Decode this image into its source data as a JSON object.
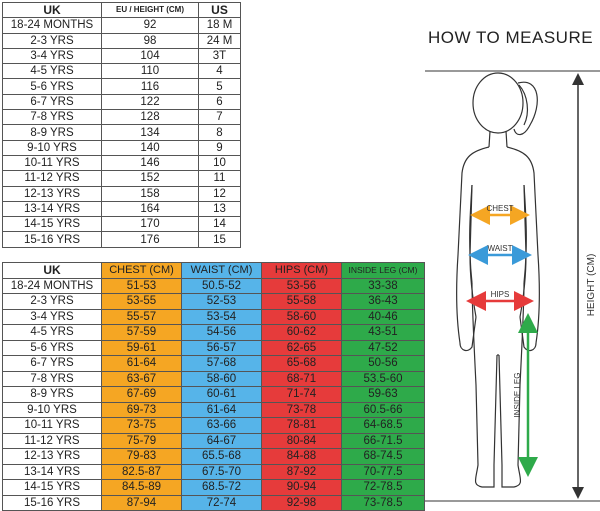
{
  "size_table": {
    "headers": [
      "UK",
      "EU / HEIGHT (CM)",
      "US"
    ],
    "rows": [
      [
        "18-24 MONTHS",
        "92",
        "18 M"
      ],
      [
        "2-3 YRS",
        "98",
        "24 M"
      ],
      [
        "3-4 YRS",
        "104",
        "3T"
      ],
      [
        "4-5 YRS",
        "110",
        "4"
      ],
      [
        "5-6 YRS",
        "116",
        "5"
      ],
      [
        "6-7 YRS",
        "122",
        "6"
      ],
      [
        "7-8 YRS",
        "128",
        "7"
      ],
      [
        "8-9 YRS",
        "134",
        "8"
      ],
      [
        "9-10 YRS",
        "140",
        "9"
      ],
      [
        "10-11 YRS",
        "146",
        "10"
      ],
      [
        "11-12 YRS",
        "152",
        "11"
      ],
      [
        "12-13 YRS",
        "158",
        "12"
      ],
      [
        "13-14 YRS",
        "164",
        "13"
      ],
      [
        "14-15 YRS",
        "170",
        "14"
      ],
      [
        "15-16 YRS",
        "176",
        "15"
      ]
    ]
  },
  "measurement_table": {
    "headers": [
      "UK",
      "CHEST (CM)",
      "WAIST (CM)",
      "HIPS (CM)",
      "INSIDE LEG (CM)"
    ],
    "rows": [
      [
        "18-24 MONTHS",
        "51-53",
        "50.5-52",
        "53-56",
        "33-38"
      ],
      [
        "2-3 YRS",
        "53-55",
        "52-53",
        "55-58",
        "36-43"
      ],
      [
        "3-4 YRS",
        "55-57",
        "53-54",
        "58-60",
        "40-46"
      ],
      [
        "4-5 YRS",
        "57-59",
        "54-56",
        "60-62",
        "43-51"
      ],
      [
        "5-6 YRS",
        "59-61",
        "56-57",
        "62-65",
        "47-52"
      ],
      [
        "6-7 YRS",
        "61-64",
        "57-68",
        "65-68",
        "50-56"
      ],
      [
        "7-8 YRS",
        "63-67",
        "58-60",
        "68-71",
        "53.5-60"
      ],
      [
        "8-9 YRS",
        "67-69",
        "60-61",
        "71-74",
        "59-63"
      ],
      [
        "9-10 YRS",
        "69-73",
        "61-64",
        "73-78",
        "60.5-66"
      ],
      [
        "10-11 YRS",
        "73-75",
        "63-66",
        "78-81",
        "64-68.5"
      ],
      [
        "11-12 YRS",
        "75-79",
        "64-67",
        "80-84",
        "66-71.5"
      ],
      [
        "12-13 YRS",
        "79-83",
        "65.5-68",
        "84-88",
        "68-74.5"
      ],
      [
        "13-14 YRS",
        "82.5-87",
        "67.5-70",
        "87-92",
        "70-77.5"
      ],
      [
        "14-15 YRS",
        "84.5-89",
        "68.5-72",
        "90-94",
        "72-78.5"
      ],
      [
        "15-16 YRS",
        "87-94",
        "72-74",
        "92-98",
        "73-78.5"
      ]
    ]
  },
  "how_to_measure": {
    "title": "HOW TO MEASURE",
    "chest_label": "CHEST",
    "waist_label": "WAIST",
    "hips_label": "HIPS",
    "inside_leg_label": "INSIDE LEG",
    "height_label": "HEIGHT (CM)"
  },
  "colors": {
    "chest": "#f5a623",
    "waist": "#56b4e9",
    "hips": "#e63b3b",
    "inside_leg": "#2eaa4a"
  }
}
